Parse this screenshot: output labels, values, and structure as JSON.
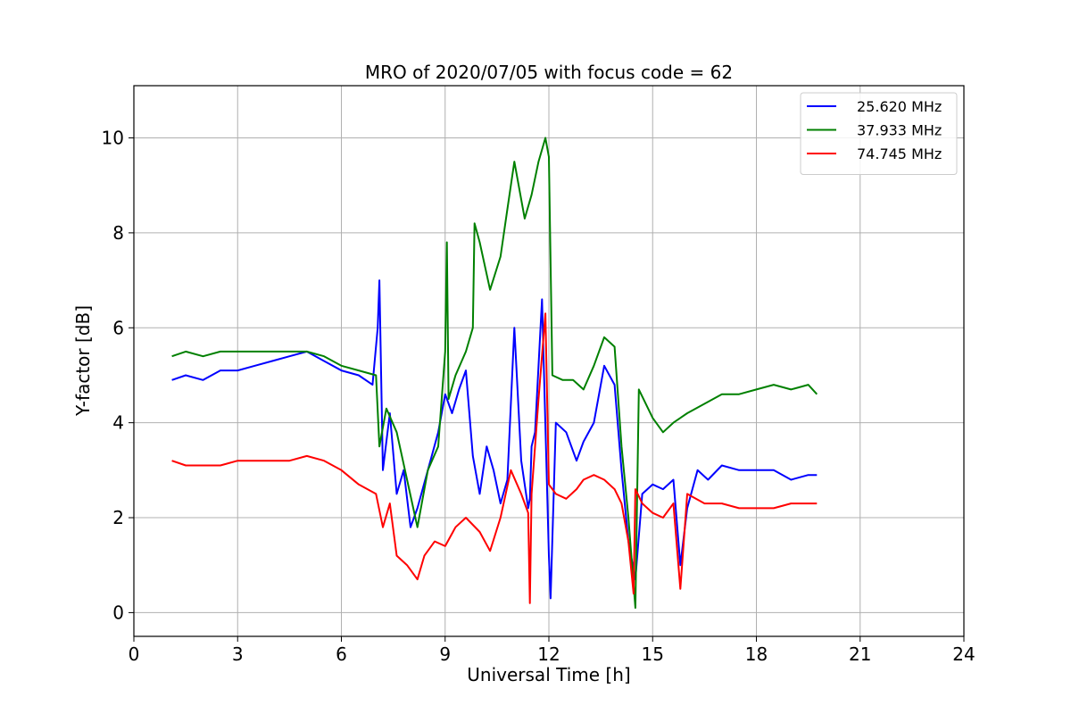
{
  "chart_data": {
    "type": "line",
    "title": "MRO of 2020/07/05 with focus code = 62",
    "xlabel": "Universal Time [h]",
    "ylabel": "Y-factor [dB]",
    "xlim": [
      0,
      24
    ],
    "ylim": [
      -0.5,
      11.1
    ],
    "xticks": [
      0,
      3,
      6,
      9,
      12,
      15,
      18,
      21,
      24
    ],
    "yticks": [
      0,
      2,
      4,
      6,
      8,
      10
    ],
    "grid": true,
    "legend_position": "top-right",
    "series": [
      {
        "name": "25.620 MHz",
        "color": "#0000ff",
        "x": [
          1.1,
          1.5,
          2.0,
          2.5,
          3.0,
          3.5,
          4.0,
          4.5,
          5.0,
          5.5,
          6.0,
          6.5,
          6.9,
          7.05,
          7.1,
          7.2,
          7.4,
          7.6,
          7.8,
          8.0,
          8.2,
          8.5,
          8.8,
          9.0,
          9.2,
          9.4,
          9.6,
          9.8,
          10.0,
          10.2,
          10.4,
          10.6,
          10.8,
          11.0,
          11.2,
          11.4,
          11.45,
          11.5,
          11.6,
          11.8,
          12.0,
          12.05,
          12.2,
          12.5,
          12.8,
          13.0,
          13.3,
          13.6,
          13.9,
          14.1,
          14.3,
          14.5,
          14.7,
          15.0,
          15.3,
          15.6,
          15.8,
          16.0,
          16.3,
          16.6,
          17.0,
          17.5,
          18.0,
          18.5,
          19.0,
          19.5,
          19.75
        ],
        "y": [
          4.9,
          5.0,
          4.9,
          5.1,
          5.1,
          5.2,
          5.3,
          5.4,
          5.5,
          5.3,
          5.1,
          5.0,
          4.8,
          6.0,
          7.0,
          3.0,
          4.2,
          2.5,
          3.0,
          1.8,
          2.2,
          3.0,
          3.8,
          4.6,
          4.2,
          4.7,
          5.1,
          3.3,
          2.5,
          3.5,
          3.0,
          2.3,
          2.8,
          6.0,
          3.2,
          2.2,
          2.4,
          3.5,
          3.8,
          6.6,
          1.2,
          0.3,
          4.0,
          3.8,
          3.2,
          3.6,
          4.0,
          5.2,
          4.8,
          3.0,
          1.5,
          0.7,
          2.5,
          2.7,
          2.6,
          2.8,
          1.0,
          2.2,
          3.0,
          2.8,
          3.1,
          3.0,
          3.0,
          3.0,
          2.8,
          2.9,
          2.9
        ]
      },
      {
        "name": "37.933 MHz",
        "color": "#008000",
        "x": [
          1.1,
          1.5,
          2.0,
          2.5,
          3.0,
          3.5,
          4.0,
          4.5,
          5.0,
          5.5,
          6.0,
          6.5,
          7.0,
          7.1,
          7.3,
          7.6,
          7.9,
          8.2,
          8.5,
          8.8,
          9.0,
          9.05,
          9.1,
          9.3,
          9.6,
          9.8,
          9.85,
          10.0,
          10.3,
          10.6,
          10.8,
          11.0,
          11.3,
          11.5,
          11.7,
          11.9,
          12.0,
          12.1,
          12.4,
          12.7,
          13.0,
          13.3,
          13.6,
          13.9,
          14.1,
          14.3,
          14.5,
          14.6,
          15.0,
          15.3,
          15.6,
          16.0,
          16.5,
          17.0,
          17.5,
          18.0,
          18.5,
          19.0,
          19.5,
          19.75
        ],
        "y": [
          5.4,
          5.5,
          5.4,
          5.5,
          5.5,
          5.5,
          5.5,
          5.5,
          5.5,
          5.4,
          5.2,
          5.1,
          5.0,
          3.5,
          4.3,
          3.8,
          2.8,
          1.8,
          3.0,
          3.5,
          5.5,
          7.8,
          4.5,
          5.0,
          5.5,
          6.0,
          8.2,
          7.8,
          6.8,
          7.5,
          8.5,
          9.5,
          8.3,
          8.8,
          9.5,
          10.0,
          9.6,
          5.0,
          4.9,
          4.9,
          4.7,
          5.2,
          5.8,
          5.6,
          3.5,
          2.0,
          0.1,
          4.7,
          4.1,
          3.8,
          4.0,
          4.2,
          4.4,
          4.6,
          4.6,
          4.7,
          4.8,
          4.7,
          4.8,
          4.6
        ]
      },
      {
        "name": "74.745 MHz",
        "color": "#ff0000",
        "x": [
          1.1,
          1.5,
          2.0,
          2.5,
          3.0,
          3.5,
          4.0,
          4.5,
          5.0,
          5.5,
          6.0,
          6.5,
          7.0,
          7.2,
          7.4,
          7.6,
          7.9,
          8.2,
          8.4,
          8.7,
          9.0,
          9.3,
          9.6,
          10.0,
          10.3,
          10.6,
          10.9,
          11.2,
          11.4,
          11.45,
          11.5,
          11.7,
          11.9,
          12.0,
          12.2,
          12.5,
          12.8,
          13.0,
          13.3,
          13.6,
          13.9,
          14.1,
          14.3,
          14.45,
          14.5,
          14.7,
          15.0,
          15.3,
          15.6,
          15.8,
          16.0,
          16.5,
          17.0,
          17.5,
          18.0,
          18.5,
          19.0,
          19.5,
          19.75
        ],
        "y": [
          3.2,
          3.1,
          3.1,
          3.1,
          3.2,
          3.2,
          3.2,
          3.2,
          3.3,
          3.2,
          3.0,
          2.7,
          2.5,
          1.8,
          2.3,
          1.2,
          1.0,
          0.7,
          1.2,
          1.5,
          1.4,
          1.8,
          2.0,
          1.7,
          1.3,
          2.0,
          3.0,
          2.5,
          2.1,
          0.2,
          2.5,
          4.5,
          6.3,
          2.7,
          2.5,
          2.4,
          2.6,
          2.8,
          2.9,
          2.8,
          2.6,
          2.3,
          1.5,
          0.4,
          2.6,
          2.3,
          2.1,
          2.0,
          2.3,
          0.5,
          2.5,
          2.3,
          2.3,
          2.2,
          2.2,
          2.2,
          2.3,
          2.3,
          2.3
        ]
      }
    ]
  }
}
